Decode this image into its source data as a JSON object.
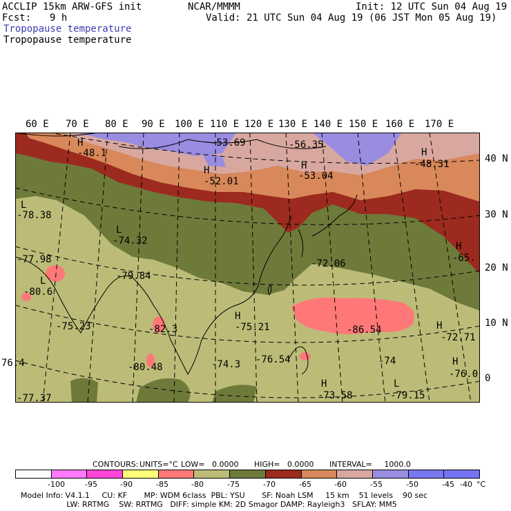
{
  "header": {
    "model": "ACCLIP 15km ARW-GFS init",
    "org": "NCAR/MMMM",
    "init": "Init: 12 UTC Sun 04 Aug 19",
    "fcst_label": "Fcst:",
    "fcst_value": "9 h",
    "valid": "Valid: 21 UTC Sun 04 Aug 19 (06 JST Mon 05 Aug 19)",
    "field_title_1": "Tropopause temperature",
    "field_title_2": "Tropopause temperature"
  },
  "map": {
    "lon_labels": [
      "60 E",
      "70 E",
      "80 E",
      "90 E",
      "100 E",
      "110 E",
      "120 E",
      "130 E",
      "140 E",
      "150 E",
      "160 E",
      "170 E"
    ],
    "lat_labels": [
      "40 N",
      "30 N",
      "20 N",
      "10 N",
      "0"
    ],
    "extremes": [
      {
        "mark": "H",
        "value": "-48.1"
      },
      {
        "mark": "",
        "value": "-53.69"
      },
      {
        "mark": "",
        "value": "-56.35"
      },
      {
        "mark": "H",
        "value": "-48.31"
      },
      {
        "mark": "H",
        "value": "-52.01"
      },
      {
        "mark": "H",
        "value": "-53.04"
      },
      {
        "mark": "L",
        "value": "-78.38"
      },
      {
        "mark": "L",
        "value": "-74.32"
      },
      {
        "mark": "",
        "value": "-72.06"
      },
      {
        "mark": "H",
        "value": "-65."
      },
      {
        "mark": "",
        "value": "-77.98"
      },
      {
        "mark": "",
        "value": "-79.84"
      },
      {
        "mark": "L",
        "value": "-80.6"
      },
      {
        "mark": "",
        "value": "-75.23"
      },
      {
        "mark": "",
        "value": "-82.3"
      },
      {
        "mark": "H",
        "value": "-75.21"
      },
      {
        "mark": "",
        "value": "-86.54"
      },
      {
        "mark": "H",
        "value": "-72.71"
      },
      {
        "mark": "",
        "value": "-80.48"
      },
      {
        "mark": "",
        "value": "-74.3"
      },
      {
        "mark": "",
        "value": "-76.54"
      },
      {
        "mark": "",
        "value": "-74"
      },
      {
        "mark": "H",
        "value": "-76.0"
      },
      {
        "mark": "",
        "value": "76.4"
      },
      {
        "mark": "H",
        "value": "-73.58"
      },
      {
        "mark": "L",
        "value": "-79.15"
      },
      {
        "mark": "",
        "value": "-77.37"
      }
    ]
  },
  "footer": {
    "contours_label": "CONTOURS:",
    "units": "UNITS=°C",
    "low": "LOW=   0.0000",
    "high": "HIGH=   0.0000",
    "interval": "INTERVAL=     1000.0",
    "legend_colors": [
      "#ffffff",
      "#ff78ff",
      "#ff44d8",
      "#ffff78",
      "#ff7878",
      "#bcbc78",
      "#6e7a3a",
      "#9c2a1e",
      "#d8885a",
      "#d8a8a0",
      "#9a8ce0",
      "#7878f0",
      "#7474f4"
    ],
    "legend_labels": [
      "-100",
      "-95",
      "-90",
      "-85",
      "-80",
      "-75",
      "-70",
      "-65",
      "-60",
      "-55",
      "-50",
      "-45",
      "-40",
      "°C"
    ],
    "info_1": "Model Info: V4.1.1     CU: KF       MP: WDM 6class  PBL: YSU       SF: Noah LSM     15 km    51 levels    90 sec",
    "info_2": "                   LW: RRTMG    SW: RRTMG   DIFF: simple KM: 2D Smagor DAMP: Rayleigh3   SFLAY: MM5"
  }
}
